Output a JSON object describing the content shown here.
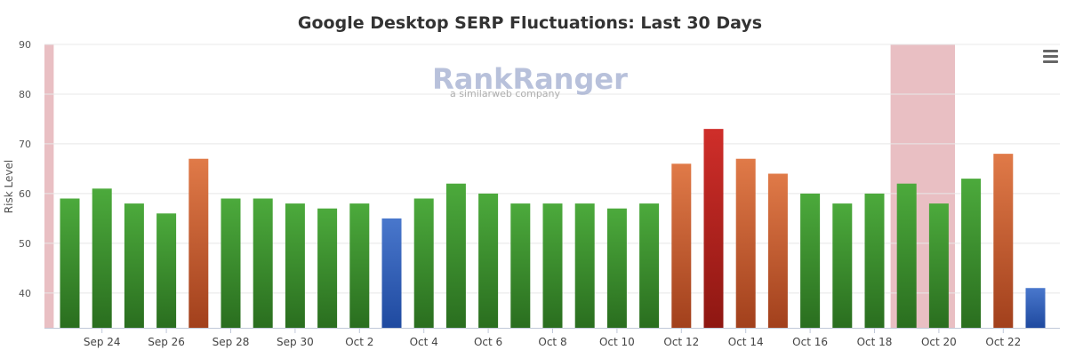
{
  "watermark": {
    "brand": "RankRanger",
    "tagline": "a similarweb company"
  },
  "menu": {
    "icon": "hamburger-menu-icon"
  },
  "colors": {
    "green_top": "#4caa3c",
    "green_bottom": "#2a6e1f",
    "orange_top": "#e07a48",
    "orange_bottom": "#a2401c",
    "red_top": "#cf2e2a",
    "red_bottom": "#8e1712",
    "blue_top": "#4977cc",
    "blue_bottom": "#1f4aa0",
    "band": "#e9bfc3",
    "grid": "#e8e8e8"
  },
  "chart_data": {
    "type": "bar",
    "title": "Google Desktop SERP Fluctuations: Last 30 Days",
    "xlabel": "",
    "ylabel": "Risk Level",
    "ylim": [
      33,
      90
    ],
    "yticks": [
      40,
      50,
      60,
      70,
      80,
      90
    ],
    "grid": true,
    "categories": [
      "Sep 23",
      "Sep 24",
      "Sep 25",
      "Sep 26",
      "Sep 27",
      "Sep 28",
      "Sep 29",
      "Sep 30",
      "Oct 1",
      "Oct 2",
      "Oct 3",
      "Oct 4",
      "Oct 5",
      "Oct 6",
      "Oct 7",
      "Oct 8",
      "Oct 9",
      "Oct 10",
      "Oct 11",
      "Oct 12",
      "Oct 13",
      "Oct 14",
      "Oct 15",
      "Oct 16",
      "Oct 17",
      "Oct 18",
      "Oct 19",
      "Oct 20",
      "Oct 21",
      "Oct 22",
      "Oct 23"
    ],
    "x_tick_labels": [
      "Sep 24",
      "Sep 26",
      "Sep 28",
      "Sep 30",
      "Oct 2",
      "Oct 4",
      "Oct 6",
      "Oct 8",
      "Oct 10",
      "Oct 12",
      "Oct 14",
      "Oct 16",
      "Oct 18",
      "Oct 20",
      "Oct 22"
    ],
    "values": [
      59,
      61,
      58,
      56,
      67,
      59,
      59,
      58,
      57,
      58,
      55,
      59,
      62,
      60,
      58,
      58,
      58,
      57,
      58,
      66,
      73,
      67,
      64,
      60,
      58,
      60,
      62,
      58,
      63,
      68,
      41
    ],
    "bar_levels": [
      "green",
      "green",
      "green",
      "green",
      "orange",
      "green",
      "green",
      "green",
      "green",
      "green",
      "blue",
      "green",
      "green",
      "green",
      "green",
      "green",
      "green",
      "green",
      "green",
      "orange",
      "red",
      "orange",
      "orange",
      "green",
      "green",
      "green",
      "green",
      "green",
      "green",
      "orange",
      "blue"
    ],
    "highlight_bands": [
      {
        "from": "Sep 22",
        "to": "Sep 22"
      },
      {
        "from": "Oct 19",
        "to": "Oct 20"
      }
    ]
  }
}
